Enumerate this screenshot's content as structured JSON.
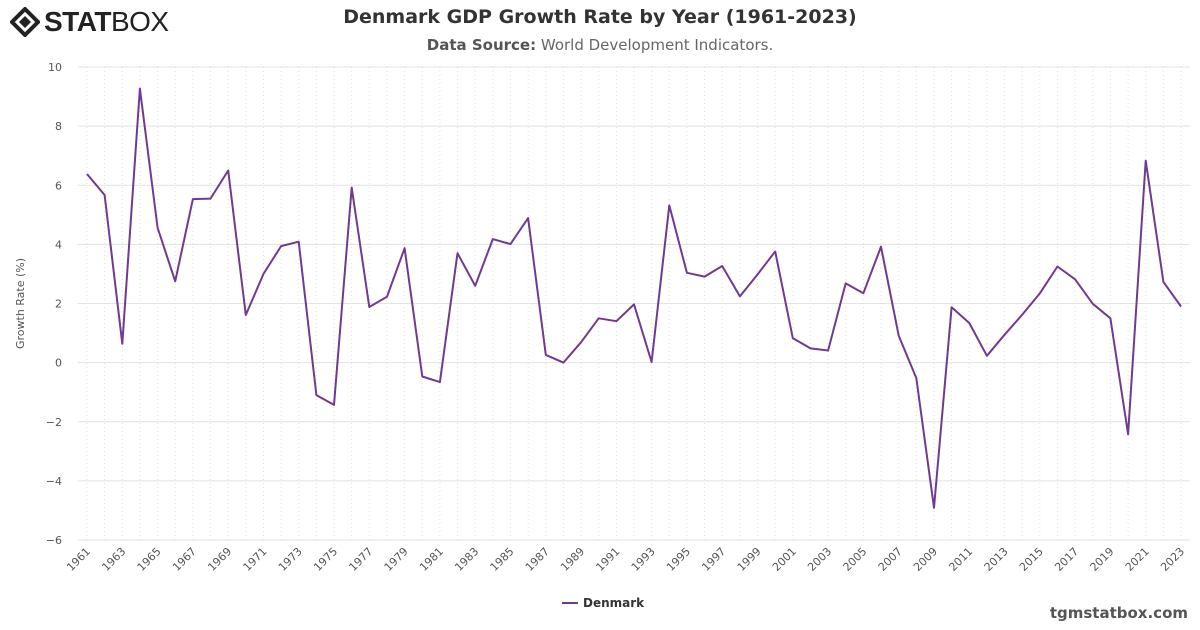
{
  "logo": {
    "bold": "STAT",
    "light": "BOX"
  },
  "header": {
    "title": "Denmark GDP Growth Rate by Year (1961-2023)",
    "subtitle_label": "Data Source:",
    "subtitle_value": "World Development Indicators."
  },
  "watermark": "tgmstatbox.com",
  "chart_data": {
    "type": "line",
    "title": "Denmark GDP Growth Rate by Year (1961-2023)",
    "xlabel": "",
    "ylabel": "Growth Rate (%)",
    "ylim": [
      -6,
      10
    ],
    "yticks": [
      10,
      8,
      6,
      4,
      2,
      0,
      -2,
      -4,
      -6
    ],
    "xlim": [
      1961,
      2023
    ],
    "grid": true,
    "legend": "bottom-center",
    "color": "#6f3a8f",
    "x": [
      1961,
      1962,
      1963,
      1964,
      1965,
      1966,
      1967,
      1968,
      1969,
      1970,
      1971,
      1972,
      1973,
      1974,
      1975,
      1976,
      1977,
      1978,
      1979,
      1980,
      1981,
      1982,
      1983,
      1984,
      1985,
      1986,
      1987,
      1988,
      1989,
      1990,
      1991,
      1992,
      1993,
      1994,
      1995,
      1996,
      1997,
      1998,
      1999,
      2000,
      2001,
      2002,
      2003,
      2004,
      2005,
      2006,
      2007,
      2008,
      2009,
      2010,
      2011,
      2012,
      2013,
      2014,
      2015,
      2016,
      2017,
      2018,
      2019,
      2020,
      2021,
      2022,
      2023
    ],
    "series": [
      {
        "name": "Denmark",
        "values": [
          6.38,
          5.67,
          0.64,
          9.27,
          4.56,
          2.75,
          5.53,
          5.55,
          6.5,
          1.61,
          3.0,
          3.94,
          4.09,
          -1.1,
          -1.43,
          5.92,
          1.88,
          2.23,
          3.87,
          -0.47,
          -0.66,
          3.7,
          2.6,
          4.18,
          4.01,
          4.89,
          0.26,
          0.0,
          0.69,
          1.5,
          1.4,
          1.97,
          0.02,
          5.32,
          3.04,
          2.91,
          3.27,
          2.24,
          2.98,
          3.76,
          0.83,
          0.48,
          0.41,
          2.68,
          2.35,
          3.92,
          0.91,
          -0.52,
          -4.91,
          1.87,
          1.34,
          0.23,
          0.94,
          1.62,
          2.34,
          3.25,
          2.82,
          1.99,
          1.5,
          -2.42,
          6.83,
          2.73,
          1.9
        ]
      }
    ]
  }
}
